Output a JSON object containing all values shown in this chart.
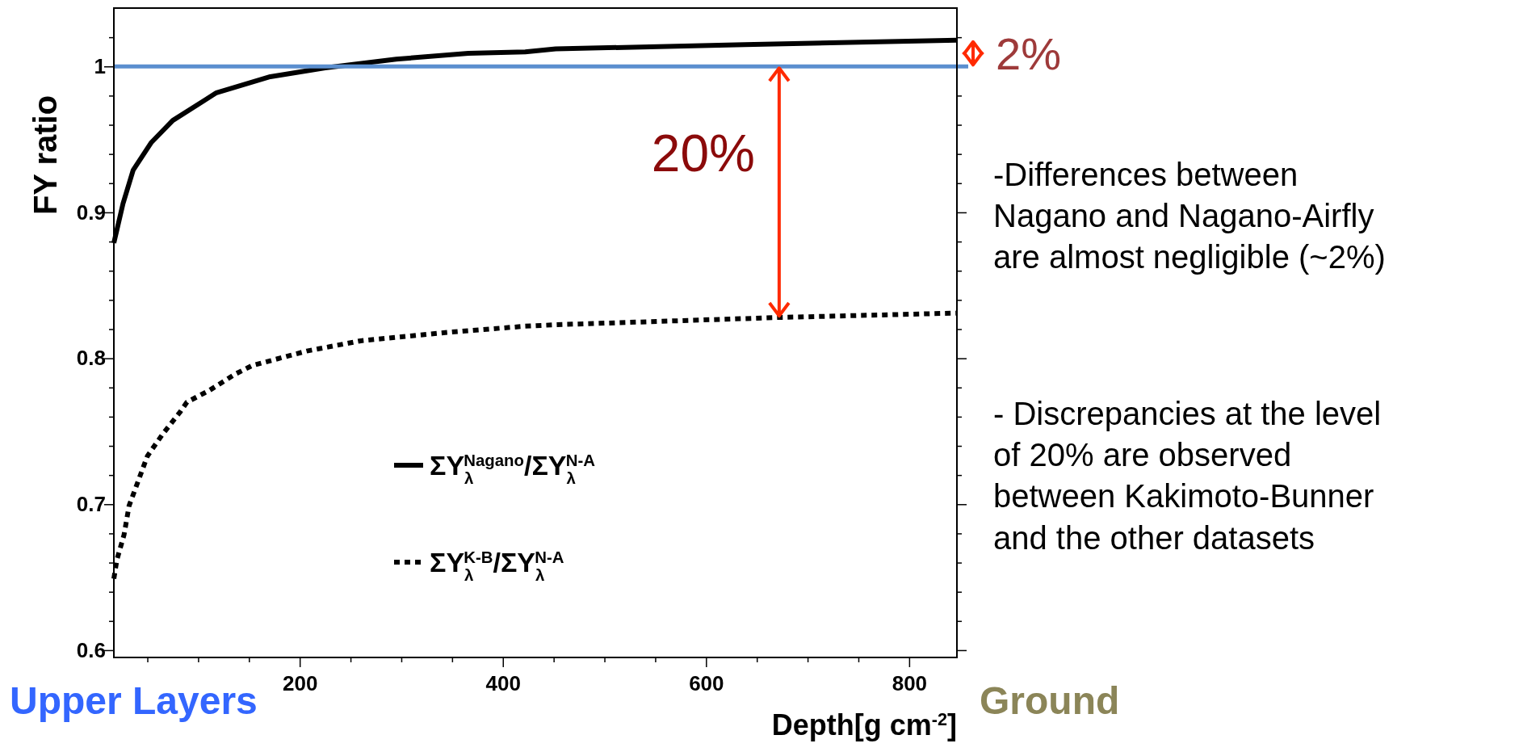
{
  "chart_data": {
    "type": "line",
    "ylabel": "FY ratio",
    "xlabel": "Depth[g cm$^{-2}$]",
    "xlim": [
      17,
      847
    ],
    "ylim": [
      0.595,
      1.04
    ],
    "xticks": [
      {
        "value": 50,
        "label": null
      },
      {
        "value": 100,
        "label": null
      },
      {
        "value": 150,
        "label": null
      },
      200,
      {
        "value": 250,
        "label": null
      },
      {
        "value": 300,
        "label": null
      },
      {
        "value": 350,
        "label": null
      },
      400,
      {
        "value": 450,
        "label": null
      },
      {
        "value": 500,
        "label": null
      },
      {
        "value": 550,
        "label": null
      },
      600,
      {
        "value": 650,
        "label": null
      },
      {
        "value": 700,
        "label": null
      },
      {
        "value": 750,
        "label": null
      },
      800
    ],
    "yticks": [
      0.6,
      {
        "value": 0.62,
        "label": null
      },
      {
        "value": 0.64,
        "label": null
      },
      {
        "value": 0.66,
        "label": null
      },
      {
        "value": 0.68,
        "label": null
      },
      0.7,
      {
        "value": 0.72,
        "label": null
      },
      {
        "value": 0.74,
        "label": null
      },
      {
        "value": 0.76,
        "label": null
      },
      {
        "value": 0.78,
        "label": null
      },
      0.8,
      {
        "value": 0.82,
        "label": null
      },
      {
        "value": 0.84,
        "label": null
      },
      {
        "value": 0.86,
        "label": null
      },
      {
        "value": 0.88,
        "label": null
      },
      0.9,
      {
        "value": 0.92,
        "label": null
      },
      {
        "value": 0.94,
        "label": null
      },
      {
        "value": 0.96,
        "label": null
      },
      {
        "value": 0.98,
        "label": null
      },
      1,
      {
        "value": 1.02,
        "label": null
      }
    ],
    "grid": false,
    "legend": "bottom",
    "marker": "none",
    "series": [
      {
        "name": "ΣY$_{λ}$$^{Nagano}$/ΣY$_{λ}$$^{N-A}$",
        "color": "#000000",
        "line_style": "solid",
        "x": [
          17,
          26,
          36,
          54,
          75,
          118,
          171,
          225,
          295,
          366,
          422,
          452,
          638,
          847
        ],
        "values": [
          0.879,
          0.906,
          0.929,
          0.948,
          0.963,
          0.982,
          0.993,
          0.999,
          1.005,
          1.009,
          1.01,
          1.012,
          1.015,
          1.018
        ]
      },
      {
        "name": "ΣY$_{λ}$$^{K-B}$/ΣY$_{λ}$$^{N-A}$",
        "color": "#000000",
        "line_style": "dotted",
        "x": [
          17,
          20,
          27,
          32,
          41,
          50,
          65,
          82,
          89,
          111,
          136,
          153,
          207,
          260,
          349,
          422,
          452,
          672,
          847
        ],
        "values": [
          0.649,
          0.662,
          0.679,
          0.699,
          0.716,
          0.733,
          0.748,
          0.763,
          0.77,
          0.778,
          0.789,
          0.795,
          0.805,
          0.812,
          0.818,
          0.822,
          0.823,
          0.828,
          0.831
        ]
      }
    ],
    "ref_lines": [
      {
        "axis": "y",
        "value": 1,
        "color": "#5b8fcf"
      }
    ],
    "annotations": [
      "2%",
      {
        "text": "20%",
        "x": 672,
        "y": 0.828
      },
      "-Differences between\nNagano and Nagano-Airfly\nare almost negligible (~2%)",
      "- Discrepancies at the level\nof 20% are observed\nbetween Kakimoto-Bunner\nand the other datasets",
      "Upper Layers",
      "Ground"
    ]
  }
}
